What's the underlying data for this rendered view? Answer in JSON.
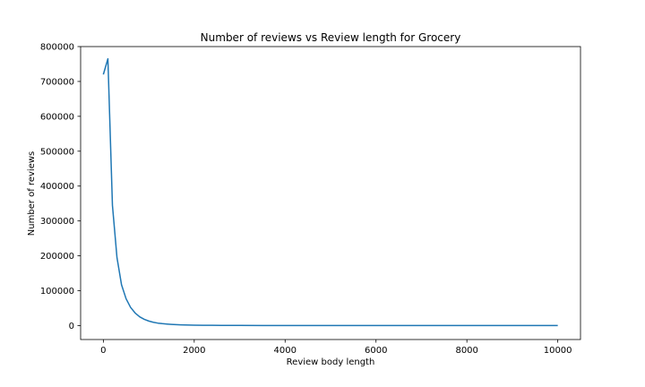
{
  "chart_data": {
    "type": "line",
    "title": "Number of reviews vs Review length for Grocery",
    "xlabel": "Review body length",
    "ylabel": "Number of reviews",
    "xlim": [
      -500,
      10500
    ],
    "ylim": [
      -40000,
      800000
    ],
    "xticks": [
      0,
      2000,
      4000,
      6000,
      8000,
      10000
    ],
    "yticks": [
      0,
      100000,
      200000,
      300000,
      400000,
      500000,
      600000,
      700000,
      800000
    ],
    "grid": false,
    "legend": "none",
    "colors": {
      "series": "#1f77b4",
      "axes": "#000000",
      "background": "#ffffff"
    },
    "series": [
      {
        "x": [
          0,
          100,
          200,
          300,
          400,
          500,
          600,
          700,
          800,
          900,
          1000,
          1100,
          1200,
          1300,
          1400,
          1500,
          1600,
          1700,
          1800,
          1900,
          2000,
          2200,
          2400,
          2600,
          2800,
          3000,
          3500,
          4000,
          5000,
          6000,
          7000,
          8000,
          9000,
          10000
        ],
        "y": [
          720000,
          765000,
          345000,
          195000,
          117000,
          77000,
          52000,
          36000,
          25000,
          18000,
          13000,
          9500,
          7000,
          5500,
          4300,
          3400,
          2700,
          2200,
          1800,
          1500,
          1200,
          900,
          700,
          500,
          400,
          300,
          200,
          150,
          100,
          80,
          60,
          50,
          40,
          30
        ]
      }
    ]
  }
}
